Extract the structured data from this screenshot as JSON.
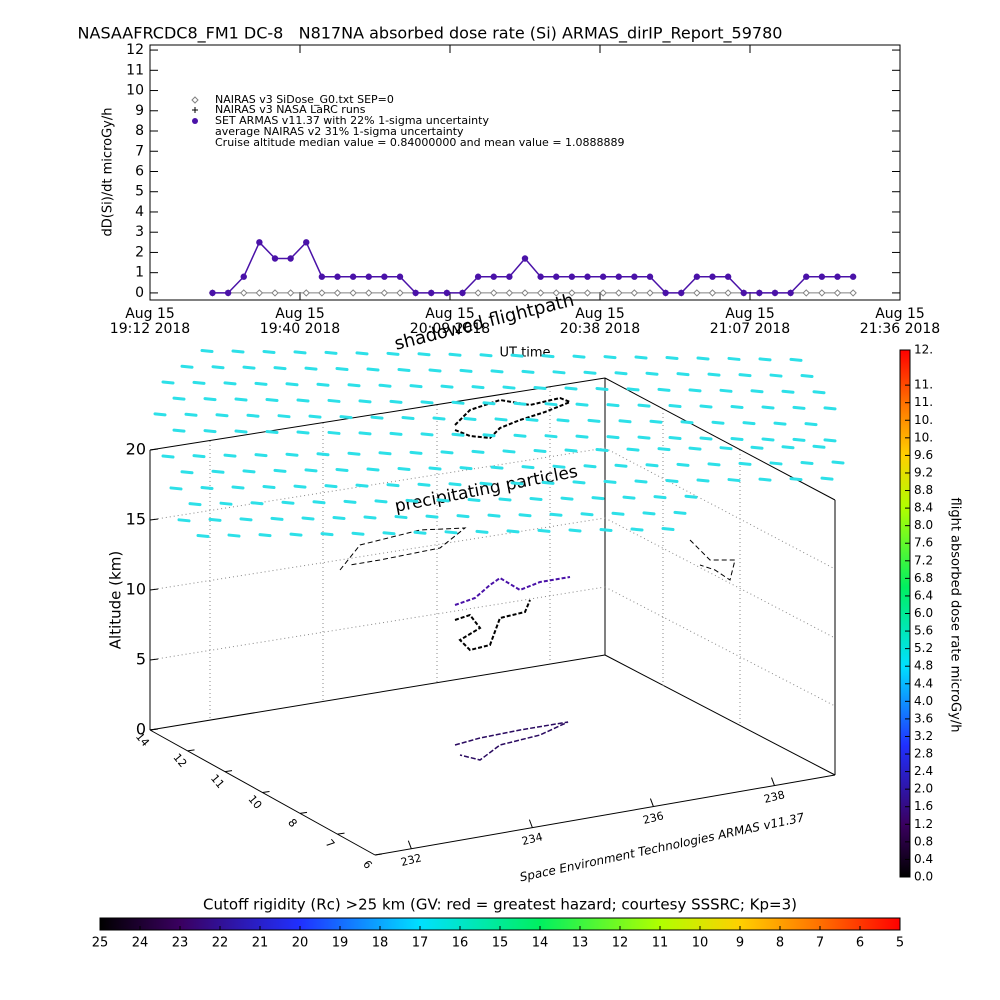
{
  "chart_data": [
    {
      "type": "line",
      "title": "NASAAFRCDC8_FM1 DC-8   N817NA absorbed dose rate (Si) ARMAS_dirIP_Report_59780",
      "ylabel": "dD(Si)/dt microGy/h",
      "xlabel": "UT time",
      "annotations": [
        "NAIRAS v3 NASA LaRC runs",
        "average NAIRAS v2 31% 1-sigma uncertainty",
        "Cruise altitude median value = 0.84000000 and mean value = 1.0888889"
      ],
      "xlim": [
        "2018-08-15T19:12:00",
        "2018-08-15T21:36:00"
      ],
      "xticks": [
        {
          "value": "2018-08-15T19:12:00",
          "label": "Aug 15\n19:12 2018"
        },
        {
          "value": "2018-08-15T19:40:48",
          "label": "Aug 15\n19:40 2018"
        },
        {
          "value": "2018-08-15T20:09:36",
          "label": "Aug 15\n20:09 2018"
        },
        {
          "value": "2018-08-15T20:38:24",
          "label": "Aug 15\n20:38 2018"
        },
        {
          "value": "2018-08-15T21:07:12",
          "label": "Aug 15\n21:07 2018"
        },
        {
          "value": "2018-08-15T21:36:00",
          "label": "Aug 15\n21:36 2018"
        }
      ],
      "ylim": [
        -0.35,
        12.25
      ],
      "yticks": [
        0,
        1,
        2,
        3,
        4,
        5,
        6,
        7,
        8,
        9,
        10,
        11,
        12
      ],
      "x": [
        "2018-08-15T19:24:00",
        "2018-08-15T19:27:00",
        "2018-08-15T19:30:00",
        "2018-08-15T19:33:00",
        "2018-08-15T19:36:00",
        "2018-08-15T19:39:00",
        "2018-08-15T19:42:00",
        "2018-08-15T19:45:00",
        "2018-08-15T19:48:00",
        "2018-08-15T19:51:00",
        "2018-08-15T19:54:00",
        "2018-08-15T19:57:00",
        "2018-08-15T20:00:00",
        "2018-08-15T20:03:00",
        "2018-08-15T20:06:00",
        "2018-08-15T20:09:00",
        "2018-08-15T20:12:00",
        "2018-08-15T20:15:00",
        "2018-08-15T20:18:00",
        "2018-08-15T20:21:00",
        "2018-08-15T20:24:00",
        "2018-08-15T20:27:00",
        "2018-08-15T20:30:00",
        "2018-08-15T20:33:00",
        "2018-08-15T20:36:00",
        "2018-08-15T20:39:00",
        "2018-08-15T20:42:00",
        "2018-08-15T20:45:00",
        "2018-08-15T20:48:00",
        "2018-08-15T20:51:00",
        "2018-08-15T20:54:00",
        "2018-08-15T20:57:00",
        "2018-08-15T21:00:00",
        "2018-08-15T21:03:00",
        "2018-08-15T21:06:00",
        "2018-08-15T21:09:00",
        "2018-08-15T21:12:00",
        "2018-08-15T21:15:00",
        "2018-08-15T21:18:00",
        "2018-08-15T21:21:00",
        "2018-08-15T21:24:00",
        "2018-08-15T21:27:00"
      ],
      "series": [
        {
          "name": "NAIRAS v3 SiDose_G0.txt SEP=0",
          "color": "#808080",
          "values": [
            0,
            0,
            0,
            0,
            0,
            0,
            0,
            0,
            0,
            0,
            0,
            0,
            0,
            0,
            0,
            0,
            0,
            0,
            0,
            0,
            0,
            0,
            0,
            0,
            0,
            0,
            0,
            0,
            0,
            0,
            0,
            0,
            0,
            0,
            0,
            0,
            0,
            0,
            0,
            0,
            0,
            0
          ]
        },
        {
          "name": "SET ARMAS v11.37 with 22% 1-sigma uncertainty",
          "color": "#4a12a8",
          "values": [
            0,
            0,
            0.8,
            2.5,
            1.7,
            1.7,
            2.5,
            0.8,
            0.8,
            0.8,
            0.8,
            0.8,
            0.8,
            0,
            0,
            0,
            0,
            0.8,
            0.8,
            0.8,
            1.7,
            0.8,
            0.8,
            0.8,
            0.8,
            0.8,
            0.8,
            0.8,
            0.8,
            0,
            0,
            0.8,
            0.8,
            0.8,
            0,
            0,
            0,
            0,
            0.8,
            0.8,
            0.8,
            0.8
          ]
        }
      ]
    },
    {
      "type": "3d",
      "annotations": [
        "shadowed flightpath",
        "precipitating particles"
      ],
      "credit": "Space Environment Technologies ARMAS v11.37",
      "zlabel": "Altitude (km)",
      "zlim": [
        0,
        20
      ],
      "zticks": [
        0,
        5,
        10,
        15,
        20
      ],
      "depth_ticks": [
        14,
        12,
        11,
        10,
        8,
        7,
        6
      ],
      "xlim": [
        231.4,
        239
      ],
      "xticks": [
        232,
        234,
        236,
        238
      ]
    },
    {
      "type": "colorbar",
      "label": "flight absorbed dose rate microGy/h",
      "ylim": [
        0,
        12
      ],
      "yticks": [
        {
          "value": 0,
          "label": "0.0"
        },
        0.4,
        0.8,
        1.2,
        1.6,
        {
          "value": 2,
          "label": "2.0"
        },
        2.4,
        2.8,
        3.2,
        3.6,
        {
          "value": 4,
          "label": "4.0"
        },
        4.4,
        4.8,
        5.2,
        5.6,
        {
          "value": 6,
          "label": "6.0"
        },
        6.4,
        6.8,
        7.2,
        7.6,
        {
          "value": 8,
          "label": "8.0"
        },
        8.4,
        8.8,
        9.2,
        9.6,
        {
          "value": 10,
          "label": "10."
        },
        {
          "value": 10.4,
          "label": "10."
        },
        {
          "value": 10.8,
          "label": "11."
        },
        {
          "value": 11.2,
          "label": "11."
        },
        {
          "value": 12,
          "label": "12."
        }
      ]
    },
    {
      "type": "colorbar",
      "label": "Cutoff rigidity (Rc) >25 km (GV: red = greatest hazard; courtesy SSSRC; Kp=3)",
      "xlim": [
        25,
        5
      ],
      "xticks": [
        25,
        24,
        23,
        22,
        21,
        20,
        19,
        18,
        17,
        16,
        15,
        14,
        13,
        12,
        11,
        10,
        9,
        8,
        7,
        6,
        5
      ]
    }
  ]
}
